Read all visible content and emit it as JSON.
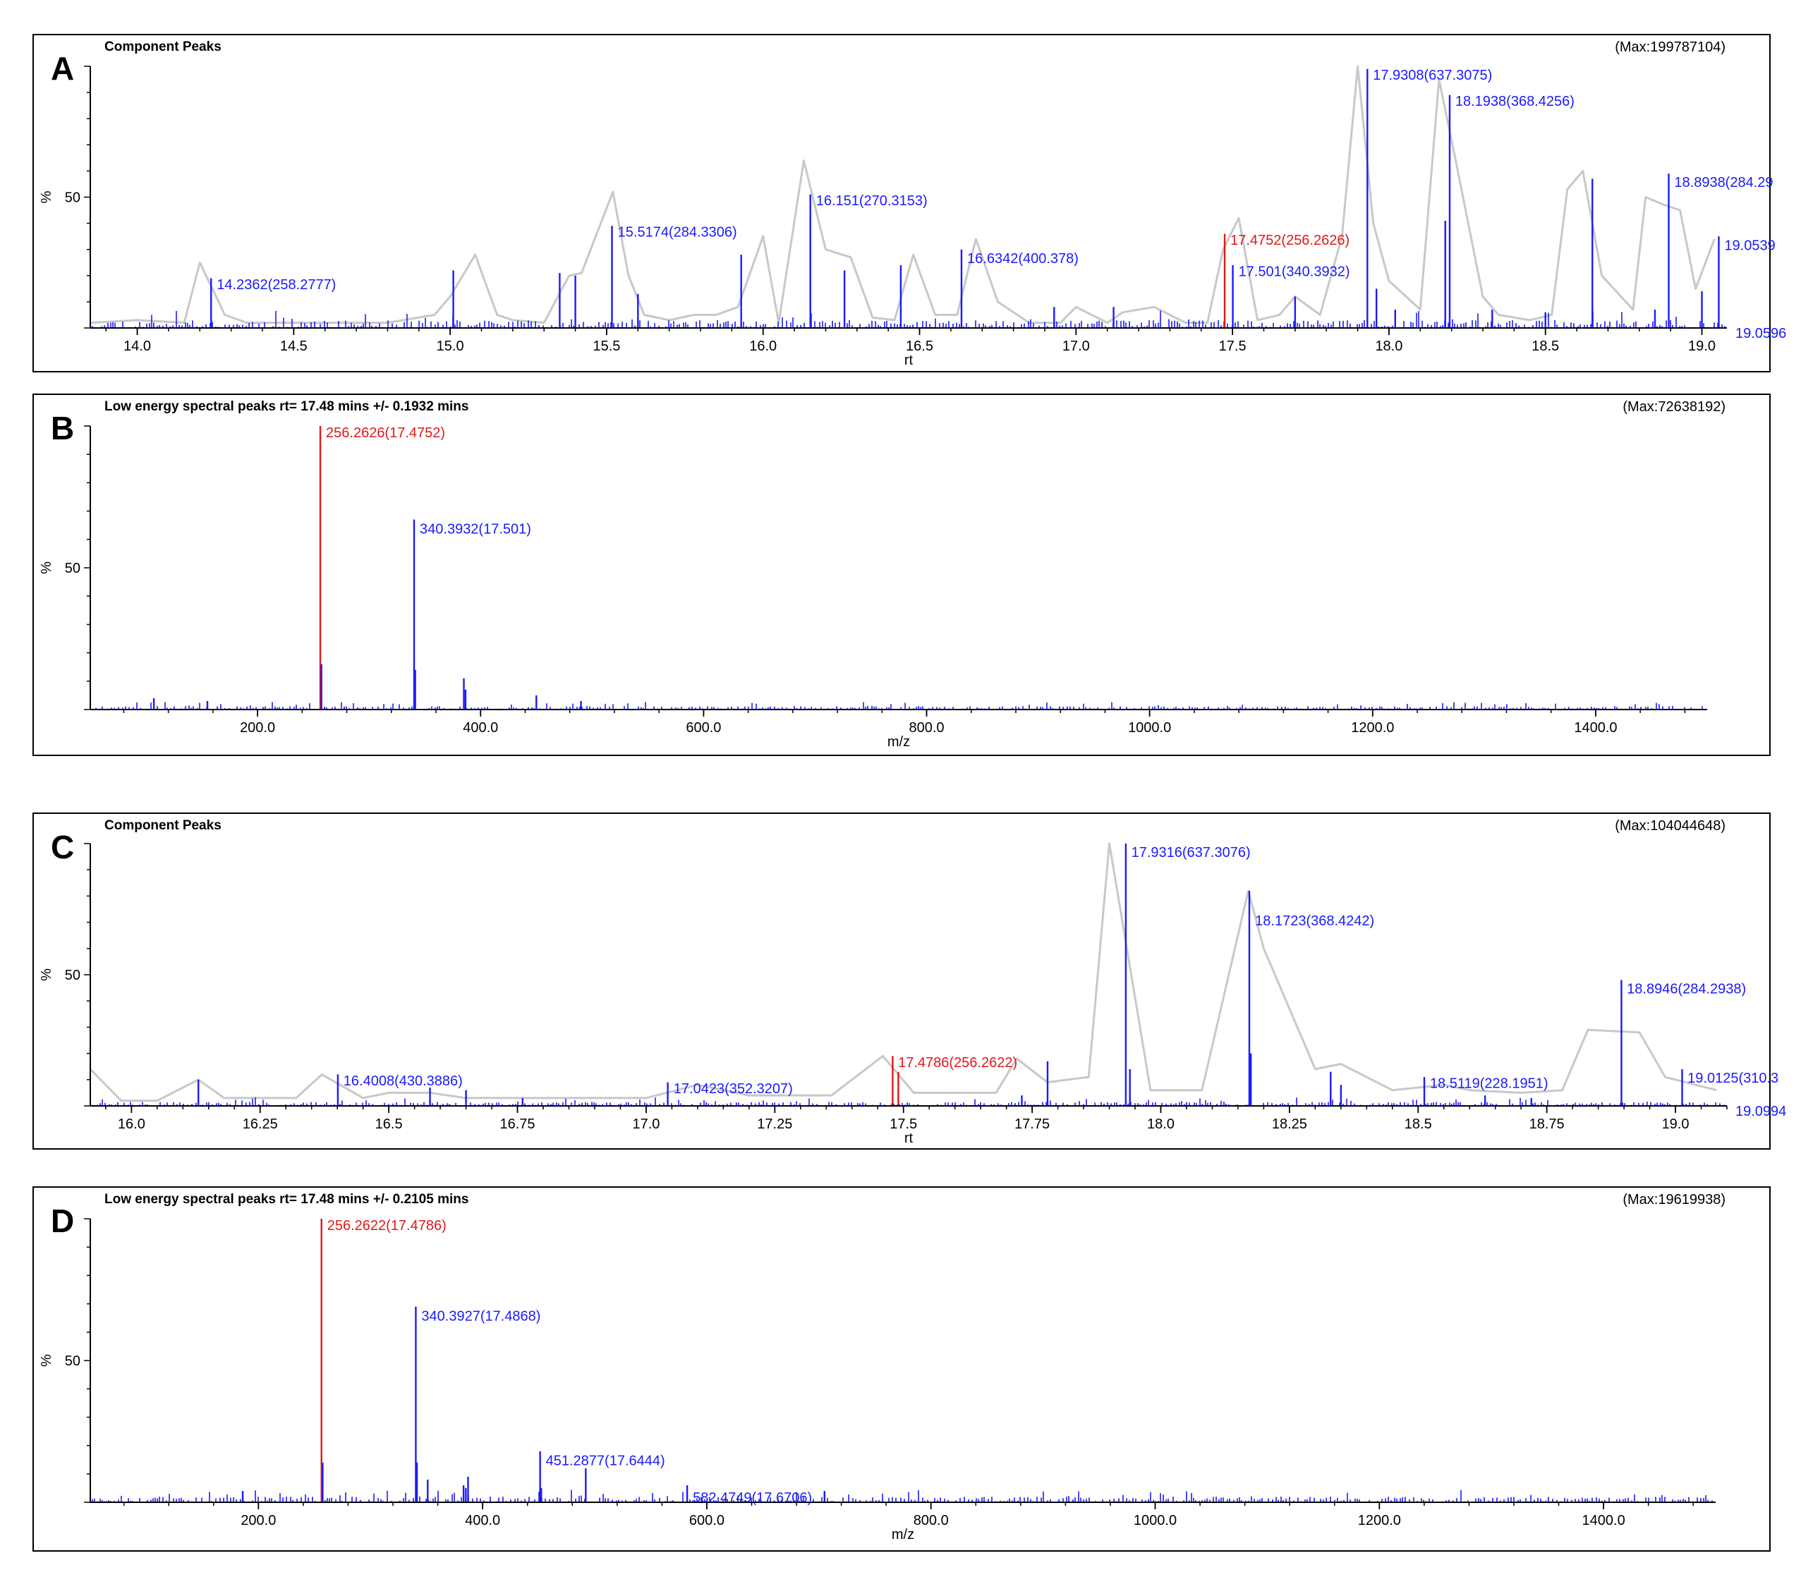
{
  "colors": {
    "peak": "#1a1aff",
    "selected": "#e01818",
    "envelope": "#c8c8c8",
    "axis": "#000000"
  },
  "chart_data": [
    {
      "type": "line",
      "panel_label": "A",
      "title": "Component Peaks",
      "max_label": "(Max:199787104)",
      "xlabel": "rt",
      "ylabel": "%",
      "xlim": [
        13.85,
        19.08
      ],
      "ylim": [
        0,
        100
      ],
      "xticks": [
        14.0,
        14.5,
        15.0,
        15.5,
        16.0,
        16.5,
        17.0,
        17.5,
        18.0,
        18.5,
        19.0
      ],
      "xtick_labels": [
        "14.0",
        "14.5",
        "15.0",
        "15.5",
        "16.0",
        "16.5",
        "17.0",
        "17.5",
        "18.0",
        "18.5",
        "19.0"
      ],
      "yticks": [
        50
      ],
      "ytick_labels": [
        "50"
      ],
      "axis_end_label": "19.0596",
      "seed": 11,
      "noise_max": 3,
      "envelope": {
        "x": [
          13.85,
          14.0,
          14.15,
          14.2,
          14.28,
          14.35,
          14.8,
          14.95,
          15.0,
          15.08,
          15.15,
          15.2,
          15.3,
          15.38,
          15.42,
          15.52,
          15.57,
          15.62,
          15.7,
          15.78,
          15.85,
          15.92,
          16.0,
          16.05,
          16.13,
          16.2,
          16.28,
          16.35,
          16.42,
          16.48,
          16.55,
          16.62,
          16.68,
          16.75,
          16.85,
          16.95,
          17.0,
          17.1,
          17.15,
          17.25,
          17.35,
          17.42,
          17.47,
          17.52,
          17.58,
          17.65,
          17.7,
          17.78,
          17.85,
          17.9,
          17.95,
          18.0,
          18.1,
          18.16,
          18.22,
          18.3,
          18.35,
          18.45,
          18.52,
          18.57,
          18.62,
          18.68,
          18.78,
          18.82,
          18.88,
          18.93,
          18.98,
          19.04
        ],
        "y": [
          2,
          3,
          2,
          25,
          5,
          2,
          2,
          5,
          12,
          28,
          5,
          3,
          2,
          20,
          21,
          52,
          20,
          5,
          3,
          5,
          5,
          8,
          35,
          2,
          64,
          30,
          27,
          4,
          3,
          28,
          5,
          5,
          34,
          10,
          2,
          2,
          8,
          2,
          6,
          8,
          2,
          2,
          30,
          42,
          3,
          5,
          12,
          5,
          35,
          100,
          40,
          18,
          7,
          95,
          60,
          12,
          5,
          3,
          5,
          53,
          60,
          20,
          7,
          50,
          47,
          45,
          15,
          34
        ]
      },
      "peaks": {
        "x": [
          14.236,
          15.01,
          15.35,
          15.4,
          15.517,
          15.6,
          15.93,
          16.151,
          16.26,
          16.44,
          16.634,
          16.93,
          17.12,
          17.475,
          17.501,
          17.7,
          17.931,
          17.96,
          18.02,
          18.18,
          18.194,
          18.33,
          18.5,
          18.65,
          18.85,
          18.894,
          19.0,
          19.054
        ],
        "y": [
          19,
          22,
          21,
          20,
          39,
          13,
          28,
          51,
          22,
          24,
          30,
          8,
          8,
          36,
          24,
          12,
          99,
          15,
          7,
          41,
          89,
          7,
          6,
          57,
          7,
          59,
          14,
          35
        ],
        "colors": [
          "peak",
          "peak",
          "peak",
          "peak",
          "peak",
          "peak",
          "peak",
          "peak",
          "peak",
          "peak",
          "peak",
          "peak",
          "peak",
          "selected",
          "peak",
          "peak",
          "peak",
          "peak",
          "peak",
          "peak",
          "peak",
          "peak",
          "peak",
          "peak",
          "peak",
          "peak",
          "peak",
          "peak"
        ]
      },
      "annotations": [
        {
          "text": "14.2362(258.2777)",
          "x": 14.2362,
          "y": 17,
          "color": "peak"
        },
        {
          "text": "15.5174(284.3306)",
          "x": 15.5174,
          "y": 37,
          "color": "peak"
        },
        {
          "text": "16.151(270.3153)",
          "x": 16.151,
          "y": 49,
          "color": "peak"
        },
        {
          "text": "16.6342(400.378)",
          "x": 16.6342,
          "y": 27,
          "color": "peak"
        },
        {
          "text": "17.4752(256.2626)",
          "x": 17.4752,
          "y": 34,
          "color": "selected"
        },
        {
          "text": "17.501(340.3932)",
          "x": 17.501,
          "y": 22,
          "color": "peak"
        },
        {
          "text": "17.9308(637.3075)",
          "x": 17.9308,
          "y": 97,
          "color": "peak"
        },
        {
          "text": "18.1938(368.4256)",
          "x": 18.1938,
          "y": 87,
          "color": "peak"
        },
        {
          "text": "18.8938(284.29",
          "x": 18.8938,
          "y": 56,
          "color": "peak"
        },
        {
          "text": "19.0539",
          "x": 19.0539,
          "y": 32,
          "color": "peak"
        }
      ]
    },
    {
      "type": "bar",
      "panel_label": "B",
      "title": "Low energy spectral peaks rt= 17.48 mins +/- 0.1932 mins",
      "max_label": "(Max:72638192)",
      "xlabel": "m/z",
      "ylabel": "%",
      "xlim": [
        50,
        1500
      ],
      "ylim": [
        0,
        100
      ],
      "xticks": [
        200,
        400,
        600,
        800,
        1000,
        1200,
        1400
      ],
      "xtick_labels": [
        "200.0",
        "400.0",
        "600.0",
        "800.0",
        "1000.0",
        "1200.0",
        "1400.0"
      ],
      "yticks": [
        50
      ],
      "ytick_labels": [
        "50"
      ],
      "seed": 23,
      "noise_max": 1.2,
      "peaks": {
        "x": [
          107,
          155,
          256.26,
          257.3,
          340.39,
          341.4,
          385,
          386.5,
          450,
          490
        ],
        "y": [
          4,
          3,
          100,
          16,
          67,
          14,
          11,
          7,
          5,
          3
        ],
        "colors": [
          "peak",
          "peak",
          "selected",
          "peak",
          "peak",
          "peak",
          "peak",
          "peak",
          "peak",
          "peak"
        ]
      },
      "annotations": [
        {
          "text": "256.2626(17.4752)",
          "x": 256.2626,
          "y": 98,
          "color": "selected"
        },
        {
          "text": "340.3932(17.501)",
          "x": 340.3932,
          "y": 64,
          "color": "peak"
        }
      ]
    },
    {
      "type": "line",
      "panel_label": "C",
      "title": "Component Peaks",
      "max_label": "(Max:104044648)",
      "xlabel": "rt",
      "ylabel": "%",
      "xlim": [
        15.92,
        19.1
      ],
      "ylim": [
        0,
        100
      ],
      "xticks": [
        16.0,
        16.25,
        16.5,
        16.75,
        17.0,
        17.25,
        17.5,
        17.75,
        18.0,
        18.25,
        18.5,
        18.75,
        19.0
      ],
      "xtick_labels": [
        "16.0",
        "16.25",
        "16.5",
        "16.75",
        "17.0",
        "17.25",
        "17.5",
        "17.75",
        "18.0",
        "18.25",
        "18.5",
        "18.75",
        "19.0"
      ],
      "yticks": [
        50
      ],
      "ytick_labels": [
        "50"
      ],
      "axis_end_label": "19.0994",
      "seed": 37,
      "noise_max": 1.5,
      "envelope": {
        "x": [
          15.92,
          15.98,
          16.05,
          16.13,
          16.18,
          16.32,
          16.37,
          16.45,
          16.5,
          16.58,
          16.65,
          16.8,
          17.0,
          17.1,
          17.2,
          17.36,
          17.46,
          17.52,
          17.68,
          17.72,
          17.78,
          17.86,
          17.9,
          17.98,
          18.08,
          18.17,
          18.2,
          18.3,
          18.35,
          18.45,
          18.55,
          18.6,
          18.7,
          18.78,
          18.83,
          18.93,
          18.98,
          19.08
        ],
        "y": [
          14,
          2,
          2,
          10,
          3,
          3,
          12,
          3,
          5,
          5,
          3,
          3,
          3,
          8,
          4,
          4,
          19,
          5,
          5,
          18,
          9,
          11,
          100,
          6,
          6,
          82,
          60,
          14,
          16,
          6,
          8,
          6,
          5,
          6,
          29,
          28,
          11,
          6
        ]
      },
      "peaks": {
        "x": [
          16.13,
          16.401,
          16.58,
          16.65,
          16.76,
          17.042,
          17.479,
          17.49,
          17.73,
          17.78,
          17.932,
          17.94,
          18.172,
          18.175,
          18.33,
          18.35,
          18.512,
          18.63,
          18.72,
          18.895,
          19.013
        ],
        "y": [
          10,
          12,
          7,
          6,
          3,
          9,
          19,
          13,
          4,
          17,
          100,
          14,
          82,
          20,
          13,
          8,
          11,
          4,
          3,
          48,
          14
        ],
        "colors": [
          "peak",
          "peak",
          "peak",
          "peak",
          "peak",
          "peak",
          "selected",
          "selected",
          "peak",
          "peak",
          "peak",
          "peak",
          "peak",
          "peak",
          "peak",
          "peak",
          "peak",
          "peak",
          "peak",
          "peak",
          "peak"
        ]
      },
      "annotations": [
        {
          "text": "16.4008(430.3886)",
          "x": 16.4008,
          "y": 10,
          "color": "peak"
        },
        {
          "text": "17.0423(352.3207)",
          "x": 17.0423,
          "y": 7,
          "color": "peak"
        },
        {
          "text": "17.4786(256.2622)",
          "x": 17.4786,
          "y": 17,
          "color": "selected"
        },
        {
          "text": "17.9316(637.3076)",
          "x": 17.9316,
          "y": 97,
          "color": "peak"
        },
        {
          "text": "18.1723(368.4242)",
          "x": 18.1723,
          "y": 71,
          "color": "peak"
        },
        {
          "text": "18.5119(228.1951)",
          "x": 18.5119,
          "y": 9,
          "color": "peak"
        },
        {
          "text": "18.8946(284.2938)",
          "x": 18.8946,
          "y": 45,
          "color": "peak"
        },
        {
          "text": "19.0125(310.3",
          "x": 19.0125,
          "y": 11,
          "color": "peak"
        }
      ]
    },
    {
      "type": "bar",
      "panel_label": "D",
      "title": "Low energy spectral peaks rt= 17.48 mins +/- 0.2105 mins",
      "max_label": "(Max:19619938)",
      "xlabel": "m/z",
      "ylabel": "%",
      "xlim": [
        50,
        1500
      ],
      "ylim": [
        0,
        100
      ],
      "xticks": [
        200,
        400,
        600,
        800,
        1000,
        1200,
        1400
      ],
      "xtick_labels": [
        "200.0",
        "400.0",
        "600.0",
        "800.0",
        "1000.0",
        "1200.0",
        "1400.0"
      ],
      "yticks": [
        50
      ],
      "ytick_labels": [
        "50"
      ],
      "seed": 53,
      "noise_max": 2,
      "peaks": {
        "x": [
          186,
          256.26,
          257.3,
          340.39,
          341.4,
          351,
          383,
          385,
          387,
          451.29,
          452.3,
          492,
          582.47,
          705
        ],
        "y": [
          4,
          100,
          14,
          69,
          14,
          8,
          6,
          5,
          9,
          18,
          5,
          12,
          6,
          4
        ],
        "colors": [
          "peak",
          "selected",
          "peak",
          "peak",
          "peak",
          "peak",
          "peak",
          "peak",
          "peak",
          "peak",
          "peak",
          "peak",
          "peak",
          "peak"
        ]
      },
      "annotations": [
        {
          "text": "256.2622(17.4786)",
          "x": 256.2622,
          "y": 98,
          "color": "selected"
        },
        {
          "text": "340.3927(17.4868)",
          "x": 340.3927,
          "y": 66,
          "color": "peak"
        },
        {
          "text": "451.2877(17.6444)",
          "x": 451.2877,
          "y": 15,
          "color": "peak"
        },
        {
          "text": "582.4749(17.6706)",
          "x": 582.4749,
          "y": 2,
          "color": "peak"
        }
      ]
    }
  ]
}
